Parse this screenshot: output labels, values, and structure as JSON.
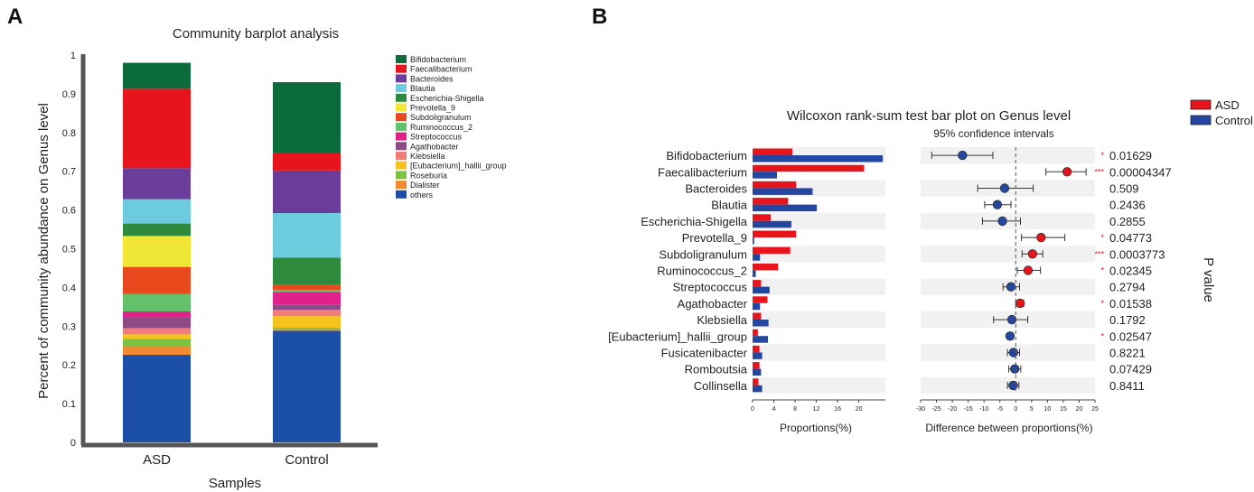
{
  "chart_data": [
    {
      "panel": "A",
      "type": "stacked_bar",
      "title": "Community barplot analysis",
      "xlabel": "Samples",
      "ylabel": "Percent of community abundance on Genus level",
      "ylim": [
        0,
        1
      ],
      "yticks": [
        "0",
        "0.1",
        "0.2",
        "0.3",
        "0.4",
        "0.5",
        "0.6",
        "0.7",
        "0.8",
        "0.9",
        "1"
      ],
      "categories": [
        "ASD",
        "Control"
      ],
      "legend_position": "right",
      "series": [
        {
          "name": "Bifidobacterium",
          "color": "#0c6b3a",
          "values": [
            0.067,
            0.183
          ]
        },
        {
          "name": "Faecalibacterium",
          "color": "#e8141c",
          "values": [
            0.205,
            0.045
          ]
        },
        {
          "name": "Bacteroides",
          "color": "#6a3d9a",
          "values": [
            0.08,
            0.11
          ]
        },
        {
          "name": "Blautia",
          "color": "#6ccbdc",
          "values": [
            0.063,
            0.115
          ]
        },
        {
          "name": "Escherichia-Shigella",
          "color": "#2e8b3e",
          "values": [
            0.032,
            0.07
          ]
        },
        {
          "name": "Prevotella_9",
          "color": "#efe636",
          "values": [
            0.08,
            0.0
          ]
        },
        {
          "name": "Subdoligranulum",
          "color": "#e8491d",
          "values": [
            0.07,
            0.013
          ]
        },
        {
          "name": "Ruminococcus_2",
          "color": "#63c16a",
          "values": [
            0.045,
            0.006
          ]
        },
        {
          "name": "Streptococcus",
          "color": "#e0218a",
          "values": [
            0.015,
            0.032
          ]
        },
        {
          "name": "Agathobacter",
          "color": "#8e4a87",
          "values": [
            0.028,
            0.014
          ]
        },
        {
          "name": "Klebsiella",
          "color": "#f07c7c",
          "values": [
            0.016,
            0.016
          ]
        },
        {
          "name": "[Eubacterium]_hallii_group",
          "color": "#f5c31c",
          "values": [
            0.012,
            0.03
          ]
        },
        {
          "name": "Roseburia",
          "color": "#7cc242",
          "values": [
            0.02,
            0.004
          ]
        },
        {
          "name": "Dialister",
          "color": "#f28a30",
          "values": [
            0.021,
            0.004
          ]
        },
        {
          "name": "others",
          "color": "#1b4fa8",
          "values": [
            0.226,
            0.288
          ]
        }
      ]
    },
    {
      "panel": "B",
      "type": "bar_and_ci",
      "title": "Wilcoxon rank-sum test bar plot on Genus level",
      "ci_title": "95% confidence intervals",
      "xlabel_left": "Proportions(%)",
      "xlabel_right": "Difference between proportions(%)",
      "pvalue_label": "P value",
      "left_ticks": [
        0,
        4,
        8,
        12,
        16,
        20
      ],
      "left_max": 25,
      "right_ticks": [
        -30,
        -25,
        -20,
        -15,
        -10,
        -5,
        0,
        5,
        10,
        15,
        20,
        25
      ],
      "groups": [
        {
          "name": "ASD",
          "color": "#e8141c"
        },
        {
          "name": "Control",
          "color": "#2347a0"
        }
      ],
      "genera": [
        {
          "name": "Bifidobacterium",
          "asd": 7.5,
          "control": 24.5,
          "diff": -16.8,
          "low": -26.5,
          "high": -7.2,
          "p": "0.01629",
          "sig": "*"
        },
        {
          "name": "Faecalibacterium",
          "asd": 21.0,
          "control": 4.6,
          "diff": 16.2,
          "low": 9.5,
          "high": 22.2,
          "p": "0.00004347",
          "sig": "***"
        },
        {
          "name": "Bacteroides",
          "asd": 8.2,
          "control": 11.3,
          "diff": -3.5,
          "low": -12.0,
          "high": 5.5,
          "p": "0.509",
          "sig": ""
        },
        {
          "name": "Blautia",
          "asd": 6.7,
          "control": 12.1,
          "diff": -5.8,
          "low": -9.8,
          "high": -1.5,
          "p": "0.2436",
          "sig": ""
        },
        {
          "name": "Escherichia-Shigella",
          "asd": 3.4,
          "control": 7.3,
          "diff": -4.2,
          "low": -10.5,
          "high": 1.5,
          "p": "0.2855",
          "sig": ""
        },
        {
          "name": "Prevotella_9",
          "asd": 8.2,
          "control": 0.3,
          "diff": 8.0,
          "low": 1.8,
          "high": 15.5,
          "p": "0.04773",
          "sig": "*"
        },
        {
          "name": "Subdoligranulum",
          "asd": 7.1,
          "control": 1.4,
          "diff": 5.3,
          "low": 2.0,
          "high": 8.5,
          "p": "0.0003773",
          "sig": "***"
        },
        {
          "name": "Ruminococcus_2",
          "asd": 4.8,
          "control": 0.6,
          "diff": 3.9,
          "low": 0.5,
          "high": 7.8,
          "p": "0.02345",
          "sig": "*"
        },
        {
          "name": "Streptococcus",
          "asd": 1.6,
          "control": 3.2,
          "diff": -1.5,
          "low": -4.0,
          "high": 1.2,
          "p": "0.2794",
          "sig": ""
        },
        {
          "name": "Agathobacter",
          "asd": 2.8,
          "control": 1.4,
          "diff": 1.4,
          "low": 0.0,
          "high": 2.5,
          "p": "0.01538",
          "sig": "*"
        },
        {
          "name": "Klebsiella",
          "asd": 1.6,
          "control": 3.0,
          "diff": -1.2,
          "low": -7.0,
          "high": 3.8,
          "p": "0.1792",
          "sig": ""
        },
        {
          "name": "[Eubacterium]_hallii_group",
          "asd": 1.0,
          "control": 2.9,
          "diff": -1.8,
          "low": -2.6,
          "high": -0.8,
          "p": "0.02547",
          "sig": "*"
        },
        {
          "name": "Fusicatenibacter",
          "asd": 1.3,
          "control": 1.8,
          "diff": -0.7,
          "low": -2.6,
          "high": 1.2,
          "p": "0.8221",
          "sig": ""
        },
        {
          "name": "Romboutsia",
          "asd": 1.3,
          "control": 1.6,
          "diff": -0.3,
          "low": -2.2,
          "high": 1.6,
          "p": "0.07429",
          "sig": ""
        },
        {
          "name": "Collinsella",
          "asd": 1.1,
          "control": 1.8,
          "diff": -0.8,
          "low": -2.6,
          "high": 1.0,
          "p": "0.8411",
          "sig": ""
        }
      ]
    }
  ],
  "panel_labels": {
    "a": "A",
    "b": "B"
  }
}
